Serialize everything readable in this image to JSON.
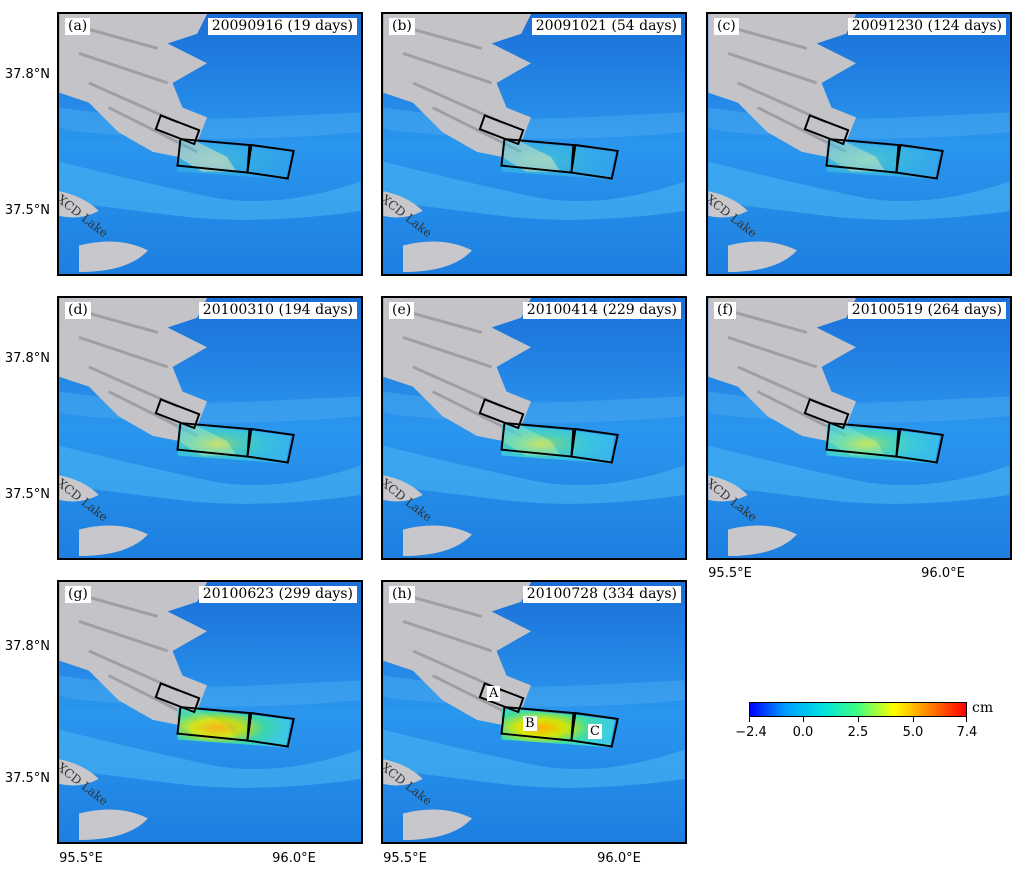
{
  "panels": [
    {
      "label": "(a)",
      "title": "20090916 (19 days)",
      "intensity": 0.05
    },
    {
      "label": "(b)",
      "title": "20091021 (54 days)",
      "intensity": 0.18
    },
    {
      "label": "(c)",
      "title": "20091230 (124 days)",
      "intensity": 0.32
    },
    {
      "label": "(d)",
      "title": "20100310 (194 days)",
      "intensity": 0.45
    },
    {
      "label": "(e)",
      "title": "20100414 (229 days)",
      "intensity": 0.55
    },
    {
      "label": "(f)",
      "title": "20100519 (264 days)",
      "intensity": 0.65
    },
    {
      "label": "(g)",
      "title": "20100623 (299 days)",
      "intensity": 0.8
    },
    {
      "label": "(h)",
      "title": "20100728 (334 days)",
      "intensity": 0.95
    }
  ],
  "lake_label": "XCD Lake",
  "axes": {
    "y_labels": [
      "37.8°N",
      "37.5°N"
    ],
    "x_labels": [
      "95.5°E",
      "96.0°E"
    ]
  },
  "points": {
    "a": "A",
    "b": "B",
    "c": "C"
  },
  "colorbar": {
    "unit": "cm",
    "ticks": [
      "−2.4",
      "0.0",
      "2.5",
      "5.0",
      "7.4"
    ],
    "colors": [
      "#0000ff",
      "#00a0ff",
      "#00e0e0",
      "#40ff80",
      "#ffff00",
      "#ff8000",
      "#ff0000"
    ]
  }
}
